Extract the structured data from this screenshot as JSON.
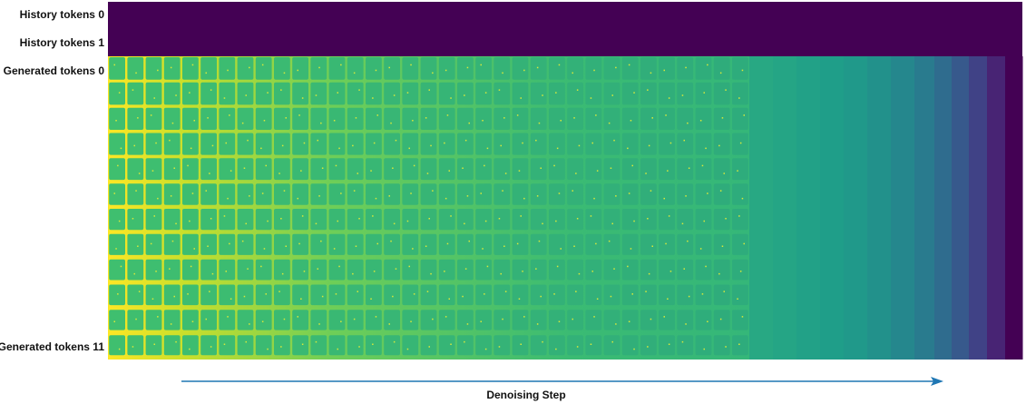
{
  "labels": {
    "history_0": "History tokens 0",
    "history_1": "History tokens 1",
    "generated_0": "Generated tokens 0",
    "generated_11": "Generated tokens 11",
    "x_axis": "Denoising Step"
  },
  "colors": {
    "history_fill": "#440154",
    "arrow": "#1f77b4",
    "viridis_stops": [
      "#440154",
      "#482878",
      "#3e4989",
      "#31688e",
      "#26828e",
      "#1f9e89",
      "#35b779",
      "#6ece58",
      "#b5de2b",
      "#fde725"
    ]
  },
  "chart_data": {
    "type": "heatmap",
    "rows": [
      "History tokens 0",
      "History tokens 1",
      "Generated tokens 0",
      "Generated tokens 11"
    ],
    "history_rows": 2,
    "generated_rows": 12,
    "denoising_columns": 35,
    "xlabel": "Denoising Step",
    "colormap": "viridis"
  }
}
